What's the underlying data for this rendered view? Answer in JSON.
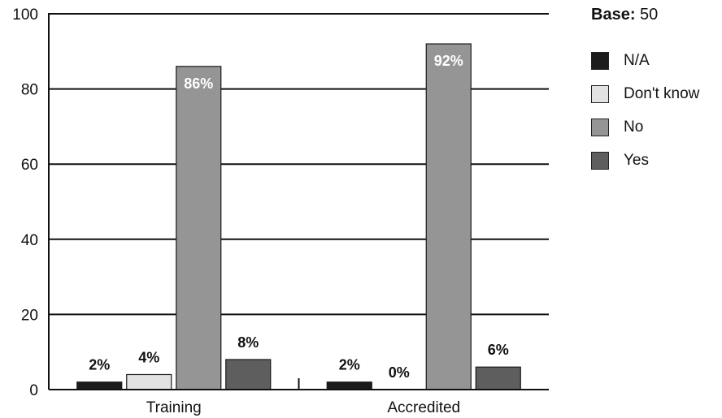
{
  "chart_data": {
    "type": "bar",
    "categories": [
      "Training",
      "Accredited"
    ],
    "series": [
      {
        "name": "N/A",
        "values": [
          2,
          2
        ],
        "color": "#1c1c1c"
      },
      {
        "name": "Don't know",
        "values": [
          4,
          0
        ],
        "color": "#e2e2e2"
      },
      {
        "name": "No",
        "values": [
          86,
          92
        ],
        "color": "#959595"
      },
      {
        "name": "Yes",
        "values": [
          8,
          6
        ],
        "color": "#5e5e5e"
      }
    ],
    "data_labels": [
      [
        "2%",
        "2%"
      ],
      [
        "4%",
        "0%"
      ],
      [
        "86%",
        "92%"
      ],
      [
        "8%",
        "6%"
      ]
    ],
    "yticks": [
      0,
      20,
      40,
      60,
      80,
      100
    ],
    "ylim": [
      0,
      100
    ],
    "grid": true,
    "legend_position": "right",
    "base_label": "Base:",
    "base_value": "50"
  }
}
